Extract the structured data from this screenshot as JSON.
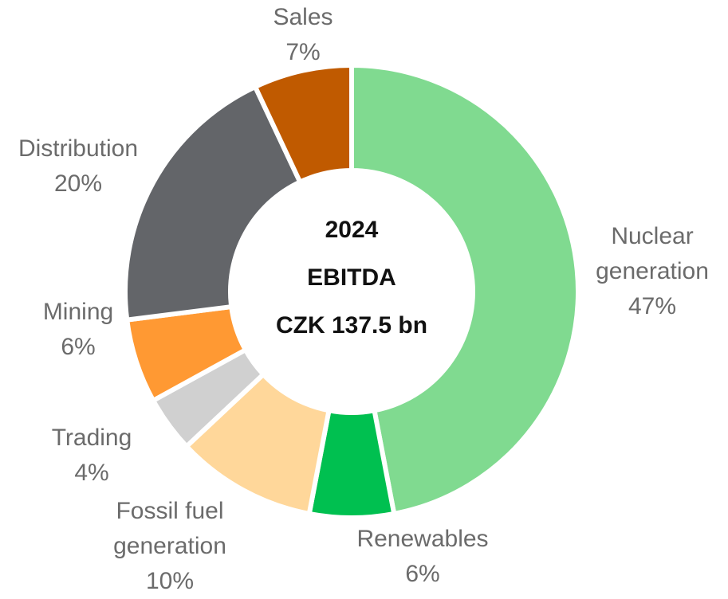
{
  "chart_data": {
    "type": "donut",
    "center_text": [
      "2024",
      "EBITDA",
      "CZK 137.5 bn"
    ],
    "categories": [
      "Nuclear generation",
      "Renewables",
      "Fossil fuel generation",
      "Trading",
      "Mining",
      "Distribution",
      "Sales"
    ],
    "values": [
      47,
      6,
      10,
      4,
      6,
      20,
      7
    ],
    "value_labels": [
      "47%",
      "6%",
      "10%",
      "4%",
      "6%",
      "20%",
      "7%"
    ],
    "colors": [
      "#80da90",
      "#00c050",
      "#ffd79a",
      "#d0d0d0",
      "#ff9933",
      "#636569",
      "#c05a00"
    ]
  }
}
